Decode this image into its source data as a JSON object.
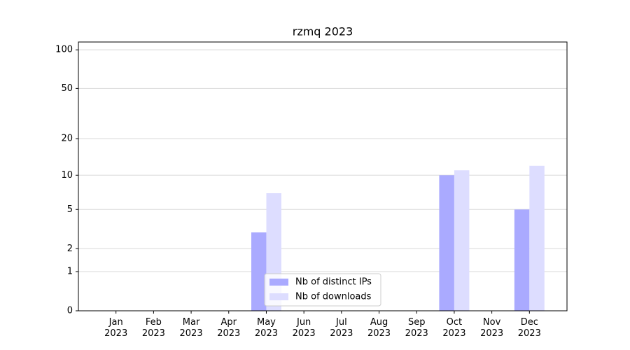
{
  "chart_data": {
    "type": "bar",
    "title": "rzmq 2023",
    "categories": [
      "Jan 2023",
      "Feb 2023",
      "Mar 2023",
      "Apr 2023",
      "May 2023",
      "Jun 2023",
      "Jul 2023",
      "Aug 2023",
      "Sep 2023",
      "Oct 2023",
      "Nov 2023",
      "Dec 2023"
    ],
    "series": [
      {
        "name": "Nb of distinct IPs",
        "color": "#aaaaff",
        "values": [
          0,
          0,
          0,
          0,
          3,
          0,
          0,
          0,
          0,
          10,
          0,
          5
        ]
      },
      {
        "name": "Nb of downloads",
        "color": "#ddddff",
        "values": [
          0,
          0,
          0,
          0,
          7,
          0,
          0,
          0,
          0,
          11,
          0,
          12
        ]
      }
    ],
    "yscale": "log1p",
    "ylim": [
      0,
      115
    ],
    "yticks": [
      0,
      1,
      2,
      5,
      10,
      20,
      50,
      100
    ],
    "grid": true,
    "legend": "lower center"
  }
}
